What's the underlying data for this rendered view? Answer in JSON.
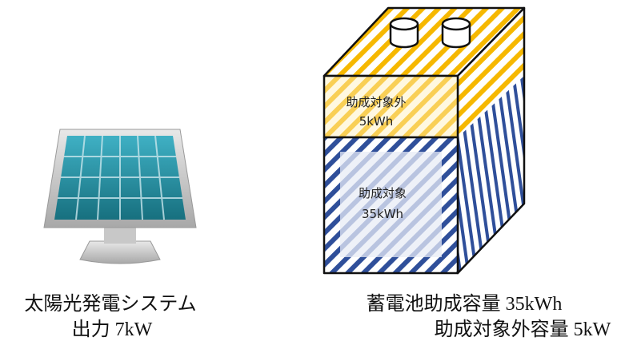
{
  "solar": {
    "caption": [
      "太陽光発電システム",
      "出力 7kW"
    ]
  },
  "battery": {
    "upper": {
      "label": "助成対象外",
      "capacity": "5kWh"
    },
    "lower": {
      "label": "助成対象",
      "capacity": "35kWh"
    },
    "caption": "蓄電池助成容量 35kWh",
    "note": "助成対象外容量 5kW"
  }
}
